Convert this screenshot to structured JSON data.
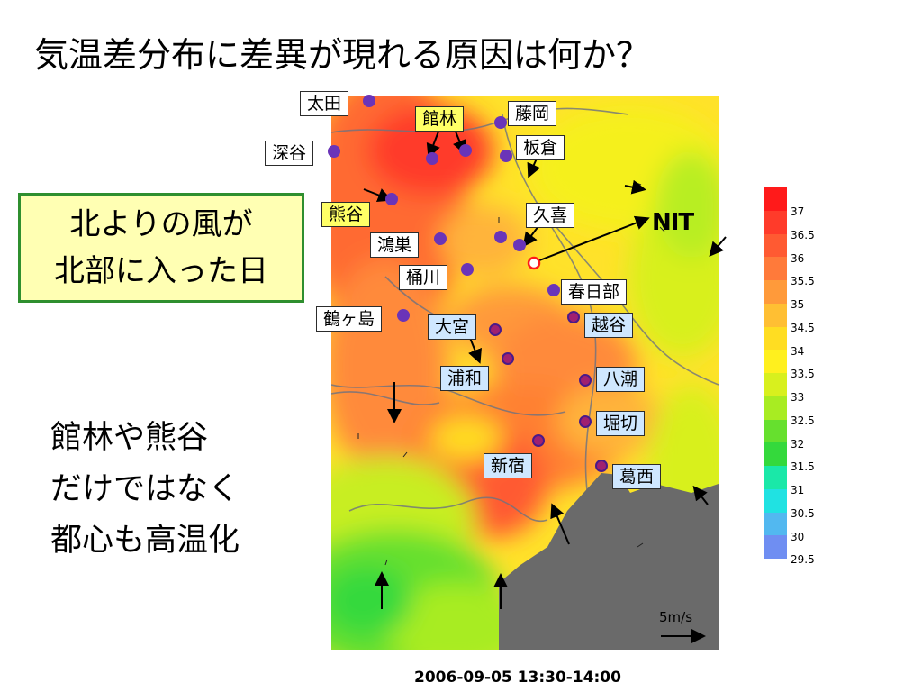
{
  "title": "気温差分布に差異が現れる原因は何か？",
  "note_box": {
    "lines": [
      "北よりの風が",
      "北部に入った日"
    ]
  },
  "bottom_text": {
    "lines": [
      "館林や熊谷",
      "だけではなく",
      "都心も高温化"
    ]
  },
  "nit_label": "NIT",
  "scale_label": "5m/s",
  "timestamp": "2006-09-05 13:30-14:00",
  "cities": {
    "ota": "太田",
    "tatebayashi": "館林",
    "fujioka": "藤岡",
    "fukaya": "深谷",
    "itakura": "板倉",
    "kumagaya": "熊谷",
    "kuki": "久喜",
    "konosu": "鴻巣",
    "okegawa": "桶川",
    "kasukabe": "春日部",
    "tsurugashima": "鶴ヶ島",
    "omiya": "大宮",
    "koshigaya": "越谷",
    "urawa": "浦和",
    "yashio": "八潮",
    "horikiri": "堀切",
    "shinjuku": "新宿",
    "kasai": "葛西"
  },
  "legend": {
    "labels": [
      "37",
      "36.5",
      "36",
      "35.5",
      "35",
      "34.5",
      "34",
      "33.5",
      "33",
      "32.5",
      "32",
      "31.5",
      "31",
      "30.5",
      "30",
      "29.5"
    ],
    "colors": [
      "#ff1a1a",
      "#ff3b2a",
      "#ff5a32",
      "#ff7a3a",
      "#ff9a3a",
      "#ffbf33",
      "#ffdd22",
      "#fff01e",
      "#d8f01e",
      "#a8ec22",
      "#66e02e",
      "#34d93c",
      "#1ae8a8",
      "#20e2e2",
      "#52b8f0",
      "#6f8ef2"
    ]
  },
  "colors": {
    "water": "#6a6a6a",
    "marker_purple": "#6a34b8",
    "note_border": "#2f8f2f"
  }
}
